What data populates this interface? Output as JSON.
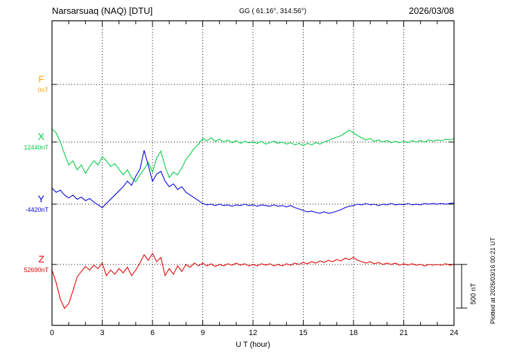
{
  "header": {
    "station_title": "Narsarsuaq (NAQ)   [DTU]",
    "geo_coords": "GG ( 61.16°, 314.56°)",
    "date": "2026/03/08"
  },
  "footer_note": "Plotted at 2026/03/16 00:21 UT",
  "x_axis": {
    "label": "U T (hour)",
    "tick_labels": [
      "0",
      "3",
      "6",
      "9",
      "12",
      "15",
      "18",
      "21",
      "24"
    ],
    "range": [
      0,
      24
    ]
  },
  "scale_bar": {
    "label": "500 nT",
    "nT": 500
  },
  "colors": {
    "F": "#FFA500",
    "X": "#00CC44",
    "Y": "#0000DD",
    "Z": "#E10000",
    "axis": "#000000"
  },
  "chart_data": {
    "type": "line",
    "title": "Narsarsuaq (NAQ) magnetogram 2026/03/08",
    "xlabel": "U T (hour)",
    "x_range_hours": [
      0,
      24
    ],
    "gridlines_hours": [
      3,
      6,
      9,
      12,
      15,
      18,
      21
    ],
    "x_hours": [
      0,
      0.25,
      0.5,
      0.75,
      1,
      1.25,
      1.5,
      1.75,
      2,
      2.25,
      2.5,
      2.75,
      3,
      3.25,
      3.5,
      3.75,
      4,
      4.25,
      4.5,
      4.75,
      5,
      5.25,
      5.5,
      5.75,
      6,
      6.25,
      6.5,
      6.75,
      7,
      7.25,
      7.5,
      7.75,
      8,
      8.25,
      8.5,
      8.75,
      9,
      9.25,
      9.5,
      9.75,
      10,
      10.25,
      10.5,
      10.75,
      11,
      11.25,
      11.5,
      11.75,
      12,
      12.25,
      12.5,
      12.75,
      13,
      13.25,
      13.5,
      13.75,
      14,
      14.25,
      14.5,
      14.75,
      15,
      15.25,
      15.5,
      15.75,
      16,
      16.25,
      16.5,
      16.75,
      17,
      17.25,
      17.5,
      17.75,
      18,
      18.25,
      18.5,
      18.75,
      19,
      19.25,
      19.5,
      19.75,
      20,
      20.25,
      20.5,
      20.75,
      21,
      21.25,
      21.5,
      21.75,
      22,
      22.25,
      22.5,
      22.75,
      23,
      23.25,
      23.5,
      23.75,
      24
    ],
    "series": [
      {
        "name": "F",
        "label": "F",
        "baseline_label": "0nT",
        "baseline_nT": 0,
        "color_key": "F",
        "values_nT": []
      },
      {
        "name": "X",
        "label": "X",
        "baseline_label": "12440nT",
        "baseline_nT": 12440,
        "color_key": "X",
        "values_nT": [
          12592,
          12544,
          12440,
          12304,
          12176,
          12224,
          12120,
          12176,
          12080,
          12160,
          12224,
          12176,
          12272,
          12224,
          12160,
          12192,
          12128,
          12064,
          12120,
          12032,
          11984,
          12064,
          12128,
          12208,
          12096,
          12256,
          12336,
          12160,
          12032,
          12096,
          12064,
          12144,
          12240,
          12304,
          12368,
          12416,
          12480,
          12456,
          12488,
          12448,
          12472,
          12440,
          12464,
          12432,
          12456,
          12424,
          12448,
          12432,
          12440,
          12424,
          12448,
          12416,
          12432,
          12448,
          12424,
          12440,
          12416,
          12432,
          12408,
          12424,
          12400,
          12424,
          12408,
          12432,
          12416,
          12440,
          12456,
          12480,
          12496,
          12512,
          12544,
          12576,
          12544,
          12512,
          12488,
          12464,
          12480,
          12448,
          12464,
          12440,
          12456,
          12432,
          12448,
          12432,
          12448,
          12432,
          12456,
          12440,
          12456,
          12440,
          12464,
          12448,
          12464,
          12456,
          12472,
          12464,
          12480
        ]
      },
      {
        "name": "Y",
        "label": "Y",
        "baseline_label": "-4420nT",
        "baseline_nT": -4420,
        "color_key": "Y",
        "values_nT": [
          -4236,
          -4284,
          -4260,
          -4316,
          -4348,
          -4316,
          -4364,
          -4340,
          -4380,
          -4356,
          -4396,
          -4428,
          -4460,
          -4412,
          -4364,
          -4316,
          -4268,
          -4220,
          -4156,
          -4204,
          -4100,
          -4020,
          -3804,
          -3980,
          -4156,
          -4076,
          -4044,
          -4156,
          -4220,
          -4188,
          -4252,
          -4220,
          -4284,
          -4316,
          -4348,
          -4380,
          -4412,
          -4428,
          -4420,
          -4436,
          -4420,
          -4436,
          -4428,
          -4444,
          -4428,
          -4436,
          -4420,
          -4436,
          -4428,
          -4444,
          -4428,
          -4436,
          -4444,
          -4428,
          -4444,
          -4436,
          -4452,
          -4436,
          -4460,
          -4476,
          -4492,
          -4508,
          -4500,
          -4516,
          -4524,
          -4508,
          -4524,
          -4516,
          -4500,
          -4484,
          -4460,
          -4444,
          -4436,
          -4420,
          -4428,
          -4412,
          -4428,
          -4420,
          -4436,
          -4420,
          -4428,
          -4412,
          -4428,
          -4420,
          -4428,
          -4412,
          -4428,
          -4420,
          -4428,
          -4412,
          -4420,
          -4412,
          -4420,
          -4412,
          -4420,
          -4412,
          -4404
        ]
      },
      {
        "name": "Z",
        "label": "Z",
        "baseline_label": "52690nT",
        "baseline_nT": 52690,
        "color_key": "Z",
        "values_nT": [
          52626,
          52482,
          52290,
          52186,
          52242,
          52386,
          52546,
          52610,
          52666,
          52626,
          52682,
          52642,
          52706,
          52562,
          52626,
          52578,
          52642,
          52594,
          52658,
          52562,
          52626,
          52706,
          52802,
          52738,
          52818,
          52722,
          52770,
          52562,
          52642,
          52578,
          52674,
          52610,
          52690,
          52658,
          52706,
          52674,
          52706,
          52674,
          52698,
          52666,
          52690,
          52674,
          52698,
          52682,
          52706,
          52682,
          52698,
          52674,
          52690,
          52674,
          52698,
          52682,
          52698,
          52674,
          52690,
          52674,
          52698,
          52682,
          52706,
          52690,
          52714,
          52698,
          52722,
          52706,
          52730,
          52714,
          52738,
          52722,
          52746,
          52730,
          52762,
          52746,
          52770,
          52738,
          52722,
          52706,
          52722,
          52698,
          52714,
          52690,
          52706,
          52690,
          52706,
          52682,
          52698,
          52682,
          52698,
          52682,
          52690,
          52674,
          52690,
          52682,
          52690,
          52682,
          52698,
          52682,
          52690
        ]
      }
    ]
  }
}
